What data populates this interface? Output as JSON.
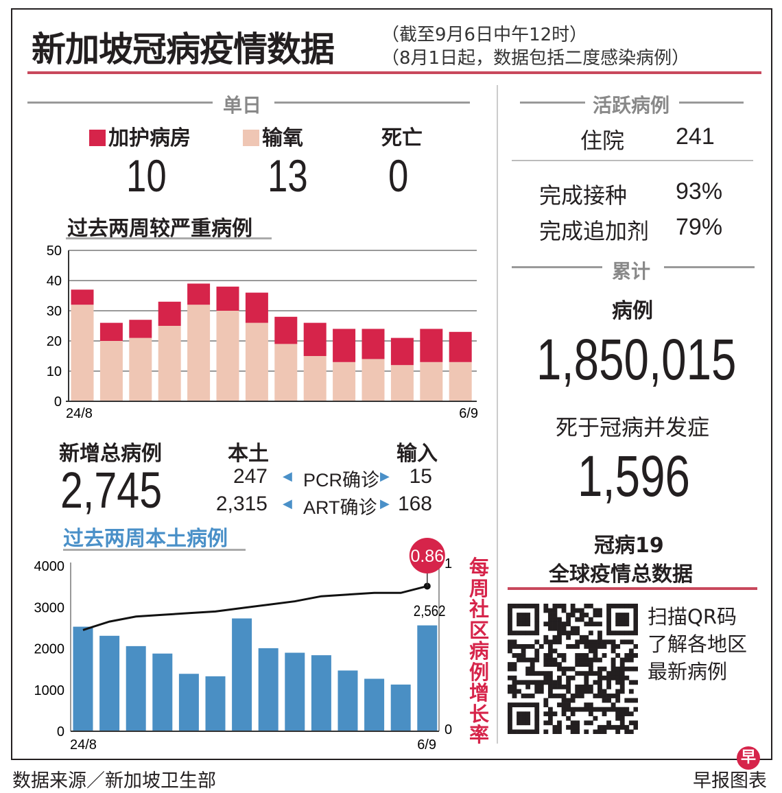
{
  "header": {
    "title": "新加坡冠病疫情数据",
    "note1": "（截至9月6日中午12时）",
    "note2": "（8月1日起，数据包括二度感染病例）"
  },
  "daily": {
    "section": "单日",
    "icu_label": "加护病房",
    "icu": "10",
    "oxygen_label": "输氧",
    "oxygen": "13",
    "death_label": "死亡",
    "death": "0"
  },
  "severe_title": "过去两周较严重病例",
  "new_cases": {
    "label": "新增总病例",
    "total": "2,745",
    "local_label": "本土",
    "import_label": "输入",
    "pcr_label": "PCR确诊",
    "pcr_local": "247",
    "pcr_import": "15",
    "art_label": "ART确诊",
    "art_local": "2,315",
    "art_import": "168"
  },
  "local_title": "过去两周本土病例",
  "growth_label": "每周社区病例增长率",
  "active": {
    "section": "活跃病例",
    "hospital_label": "住院",
    "hospital": "241",
    "vacc_label": "完成接种",
    "vacc": "93%",
    "booster_label": "完成追加剂",
    "booster": "79%"
  },
  "cumulative": {
    "section": "累计",
    "cases_label": "病例",
    "cases": "1,850,015",
    "deaths_label": "死于冠病并发症",
    "deaths": "1,596"
  },
  "global": {
    "title1": "冠病19",
    "title2": "全球疫情总数据",
    "qr_line1": "扫描QR码",
    "qr_line2": "了解各地区",
    "qr_line3": "最新病例"
  },
  "footer": {
    "source": "数据来源／新加坡卫生部",
    "credit": "早报图表",
    "logo_char": "早"
  },
  "colors": {
    "icu": "#d6244a",
    "oxygen": "#efc6b4",
    "local_bars": "#4a8fc4",
    "accent": "#c8485c"
  },
  "chart_data": [
    {
      "type": "bar",
      "stacked": true,
      "title": "过去两周较严重病例",
      "x_tick_labels": [
        "24/8",
        "6/9"
      ],
      "categories": [
        "24/8",
        "25/8",
        "26/8",
        "27/8",
        "28/8",
        "29/8",
        "30/8",
        "31/8",
        "1/9",
        "2/9",
        "3/9",
        "4/9",
        "5/9",
        "6/9"
      ],
      "series": [
        {
          "name": "输氧",
          "values": [
            32,
            20,
            21,
            25,
            32,
            30,
            26,
            19,
            15,
            13,
            14,
            12,
            13,
            13
          ]
        },
        {
          "name": "加护病房",
          "values": [
            5,
            6,
            6,
            8,
            7,
            8,
            10,
            9,
            11,
            11,
            10,
            9,
            11,
            10
          ]
        }
      ],
      "ylim": [
        0,
        50
      ],
      "yticks": [
        0,
        10,
        20,
        30,
        40,
        50
      ],
      "grid": true,
      "legend": "top"
    },
    {
      "type": "bar+line",
      "title": "过去两周本土病例",
      "x_tick_labels": [
        "24/8",
        "6/9"
      ],
      "categories": [
        "24/8",
        "25/8",
        "26/8",
        "27/8",
        "28/8",
        "29/8",
        "30/8",
        "31/8",
        "1/9",
        "2/9",
        "3/9",
        "4/9",
        "5/9",
        "6/9"
      ],
      "bars": {
        "values": [
          2530,
          2310,
          2060,
          1880,
          1390,
          1330,
          2730,
          2010,
          1900,
          1840,
          1470,
          1270,
          1130,
          2562
        ],
        "last_label": "2,562"
      },
      "line": {
        "name": "每周社区病例增长率",
        "values": [
          0.6,
          0.65,
          0.68,
          0.69,
          0.7,
          0.71,
          0.73,
          0.75,
          0.77,
          0.8,
          0.81,
          0.82,
          0.82,
          0.86
        ],
        "last_label": "0.86"
      },
      "ylim": [
        0,
        4000
      ],
      "yticks": [
        0,
        1000,
        2000,
        3000,
        4000
      ],
      "y2lim": [
        0,
        1
      ],
      "y2ticks": [
        0,
        1
      ]
    }
  ]
}
